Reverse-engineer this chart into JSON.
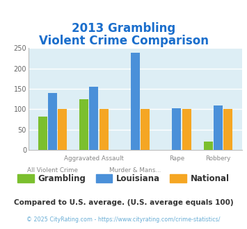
{
  "title_line1": "2013 Grambling",
  "title_line2": "Violent Crime Comparison",
  "grambling": [
    82,
    125,
    0,
    0,
    20
  ],
  "louisiana": [
    140,
    155,
    238,
    102,
    110
  ],
  "national": [
    100,
    100,
    100,
    100,
    100
  ],
  "grambling_color": "#7bbf2e",
  "louisiana_color": "#4a90d9",
  "national_color": "#f5a623",
  "ylim": [
    0,
    250
  ],
  "yticks": [
    0,
    50,
    100,
    150,
    200,
    250
  ],
  "bg_color": "#ddeef5",
  "grid_color": "#ffffff",
  "title_color": "#1a6ecc",
  "xlabel_top": [
    "",
    "Aggravated Assault",
    "",
    "Rape",
    "Robbery"
  ],
  "xlabel_bot": [
    "All Violent Crime",
    "",
    "Murder & Mans...",
    "",
    ""
  ],
  "legend_labels": [
    "Grambling",
    "Louisiana",
    "National"
  ],
  "footnote1": "Compared to U.S. average. (U.S. average equals 100)",
  "footnote2": "© 2025 CityRating.com - https://www.cityrating.com/crime-statistics/",
  "footnote1_color": "#333333",
  "footnote2_color": "#6aaed6"
}
